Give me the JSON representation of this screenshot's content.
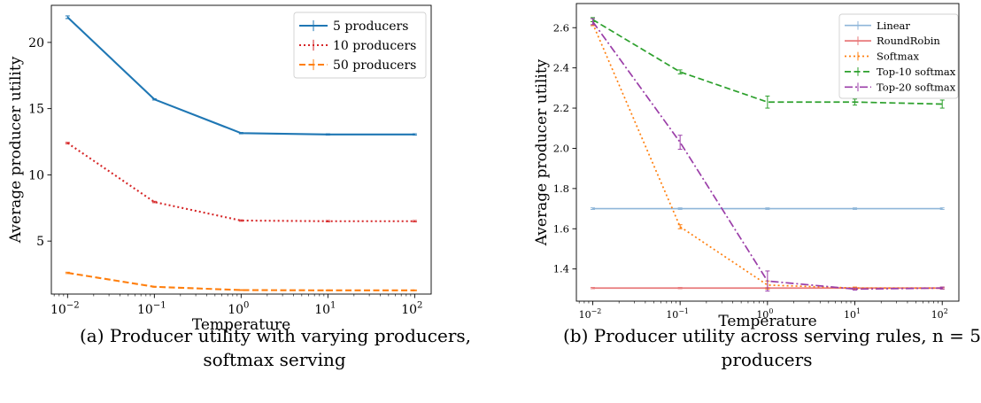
{
  "chart_data": [
    {
      "type": "line",
      "xscale": "log",
      "xlabel": "Temperature",
      "ylabel": "Average producer utility",
      "x": [
        0.01,
        0.1,
        1,
        10,
        100
      ],
      "xticks": [
        0.01,
        0.1,
        1,
        10,
        100
      ],
      "xtick_labels": [
        [
          "10",
          "−2"
        ],
        [
          "10",
          "−1"
        ],
        [
          "10",
          "0"
        ],
        [
          "10",
          "1"
        ],
        [
          "10",
          "2"
        ]
      ],
      "yticks": [
        5,
        10,
        15,
        20
      ],
      "xlim": [
        0.0065,
        155
      ],
      "ylim": [
        1.0,
        22.8
      ],
      "legend_position": "top-right",
      "grid": false,
      "series": [
        {
          "name": "5 producers",
          "values": [
            21.9,
            15.7,
            13.15,
            13.05,
            13.05
          ],
          "err": [
            0.1,
            0.05,
            0.05,
            0.05,
            0.05
          ],
          "color": "#1f77b4",
          "style": "solid"
        },
        {
          "name": "10 producers",
          "values": [
            12.4,
            7.95,
            6.55,
            6.5,
            6.5
          ],
          "err": [
            0.05,
            0.05,
            0.05,
            0.05,
            0.05
          ],
          "color": "#d62728",
          "style": "dotted"
        },
        {
          "name": "50 producers",
          "values": [
            2.6,
            1.55,
            1.3,
            1.28,
            1.28
          ],
          "err": [
            0.05,
            0.03,
            0.03,
            0.03,
            0.03
          ],
          "color": "#ff7f0e",
          "style": "dashed"
        }
      ]
    },
    {
      "type": "line",
      "xscale": "log",
      "xlabel": "Temperature",
      "ylabel": "Average producer utility",
      "x": [
        0.01,
        0.1,
        1,
        10,
        100
      ],
      "xticks": [
        0.01,
        0.1,
        1,
        10,
        100
      ],
      "xtick_labels": [
        [
          "10",
          "−2"
        ],
        [
          "10",
          "−1"
        ],
        [
          "10",
          "0"
        ],
        [
          "10",
          "1"
        ],
        [
          "10",
          "2"
        ]
      ],
      "yticks": [
        1.4,
        1.6,
        1.8,
        2.0,
        2.2,
        2.4,
        2.6
      ],
      "ytick_labels": [
        "1.4",
        "1.6",
        "1.8",
        "2.0",
        "2.2",
        "2.4",
        "2.6"
      ],
      "xlim": [
        0.0065,
        155
      ],
      "ylim": [
        1.24,
        2.72
      ],
      "legend_position": "top-right",
      "grid": false,
      "series": [
        {
          "name": "Linear",
          "values": [
            1.7,
            1.7,
            1.7,
            1.7,
            1.7
          ],
          "err": [
            0.004,
            0.004,
            0.004,
            0.004,
            0.004
          ],
          "color": "#8fb6d9",
          "style": "solid"
        },
        {
          "name": "RoundRobin",
          "values": [
            1.305,
            1.305,
            1.305,
            1.305,
            1.305
          ],
          "err": [
            0.003,
            0.003,
            0.003,
            0.003,
            0.003
          ],
          "color": "#e8797a",
          "style": "solid"
        },
        {
          "name": "Softmax",
          "values": [
            2.62,
            1.61,
            1.32,
            1.305,
            1.305
          ],
          "err": [
            0.01,
            0.01,
            0.02,
            0.005,
            0.005
          ],
          "color": "#ff7f0e",
          "style": "dotted"
        },
        {
          "name": "Top-10 softmax",
          "values": [
            2.64,
            2.38,
            2.23,
            2.23,
            2.22
          ],
          "err": [
            0.01,
            0.01,
            0.03,
            0.015,
            0.02
          ],
          "color": "#2ca02c",
          "style": "dashed"
        },
        {
          "name": "Top-20 softmax",
          "values": [
            2.63,
            2.03,
            1.34,
            1.3,
            1.305
          ],
          "err": [
            0.015,
            0.035,
            0.05,
            0.005,
            0.005
          ],
          "color": "#9b3ea8",
          "style": "dashdot"
        }
      ]
    }
  ],
  "captions": {
    "a": [
      "(a) Producer utility with varying producers,",
      "softmax serving"
    ],
    "b": [
      "(b) Producer utility across serving rules, n = 5",
      "producers"
    ]
  }
}
